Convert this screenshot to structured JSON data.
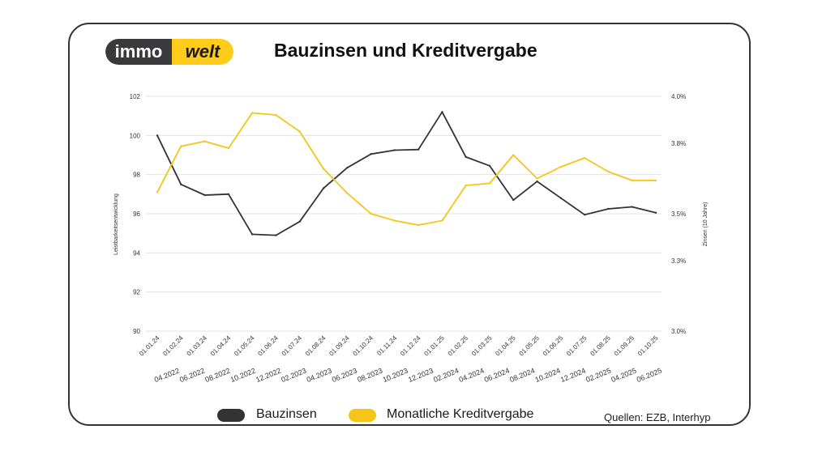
{
  "logo": {
    "left": "immo",
    "right": "welt"
  },
  "colors": {
    "bauzinsen": "#333333",
    "kredit": "#f5c518",
    "grid": "#e3e3e3",
    "axis_text": "#333333"
  },
  "chart_data": {
    "type": "line",
    "title": "Bauzinsen und Kreditvergabe",
    "ylabel_left": "Leistbarkeitsentwicklung",
    "ylabel_right": "Zinsen (10 Jahre)",
    "ylim_left": [
      90,
      102
    ],
    "yticks_left": [
      "90",
      "92",
      "94",
      "96",
      "98",
      "100",
      "102"
    ],
    "ylim_right": [
      3.0,
      4.0
    ],
    "yticks_right": [
      "3.0%",
      "3.3%",
      "3.5%",
      "3.8%",
      "4.0%"
    ],
    "x_labels_upper": [
      "01.01.24",
      "01.02.24",
      "01.03.24",
      "01.04.24",
      "01.05.24",
      "01.06.24",
      "01.07.24",
      "01.08.24",
      "01.09.24",
      "01.10.24",
      "01.11.24",
      "01.12.24",
      "01.01.25",
      "01.02.25",
      "01.03.25",
      "01.04.25",
      "01.05.25",
      "01.06.25",
      "01.07.25",
      "01.08.25",
      "01.09.25",
      "01.10.25"
    ],
    "x_labels_lower": [
      "04.2022",
      "06.2022",
      "08.2022",
      "10.2022",
      "12.2022",
      "02.2023",
      "04.2023",
      "06.2023",
      "08.2023",
      "10.2023",
      "12.2023",
      "02.2024",
      "04.2024",
      "06.2024",
      "08.2024",
      "10.2024",
      "12.2024",
      "02.2025",
      "04.2025",
      "06.2025"
    ],
    "series": [
      {
        "name": "Bauzinsen",
        "axis": "left",
        "color": "#333333",
        "values": [
          100.0,
          97.5,
          96.95,
          97.0,
          94.95,
          94.9,
          95.6,
          97.3,
          98.35,
          99.05,
          99.25,
          99.28,
          101.2,
          98.9,
          98.45,
          96.7,
          97.65,
          96.8,
          95.95,
          96.25,
          96.35,
          96.05
        ]
      },
      {
        "name": "Monatliche Kreditvergabe",
        "axis": "left",
        "color": "#f5c518",
        "values": [
          97.1,
          99.45,
          99.7,
          99.35,
          101.15,
          101.05,
          100.2,
          98.3,
          97.05,
          96.0,
          95.65,
          95.42,
          95.65,
          97.45,
          97.55,
          99.0,
          97.8,
          98.4,
          98.85,
          98.15,
          97.7,
          97.7
        ]
      }
    ]
  },
  "legend": [
    {
      "label": "Bauzinsen",
      "color": "#333333"
    },
    {
      "label": "Monatliche Kreditvergabe",
      "color": "#f5c518"
    }
  ],
  "source": "Quellen: EZB, Interhyp"
}
